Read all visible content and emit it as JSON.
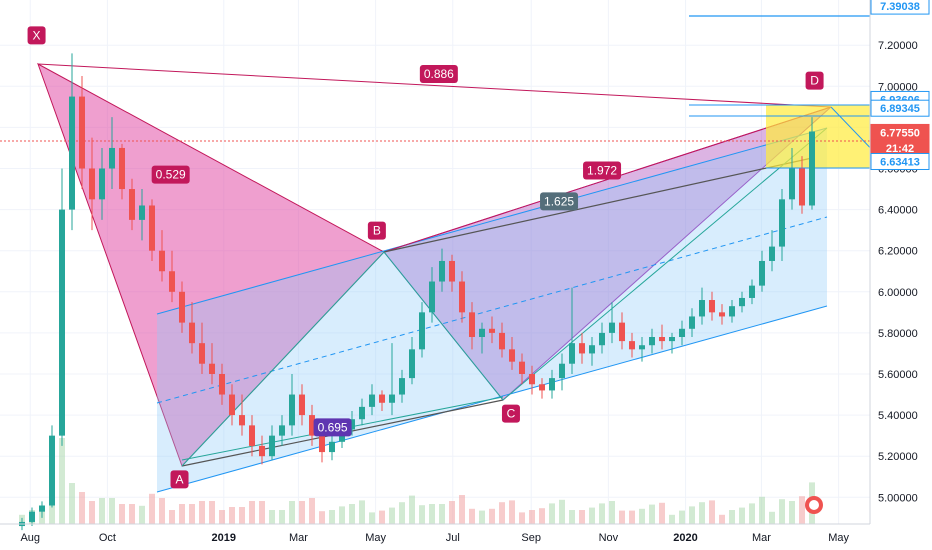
{
  "chart_data": {
    "type": "candlestick",
    "y_axis": {
      "ticks": [
        5.0,
        5.2,
        5.4,
        5.6,
        5.8,
        6.0,
        6.2,
        6.4,
        6.6,
        6.8,
        7.0,
        7.2
      ],
      "tick_labels": [
        "5.00000",
        "5.20000",
        "5.40000",
        "5.60000",
        "5.80000",
        "6.00000",
        "6.20000",
        "6.40000",
        "6.60000",
        "6.80000",
        "7.00000",
        "7.20000"
      ],
      "ylim": [
        4.87,
        7.42
      ]
    },
    "x_axis": {
      "tick_labels": [
        "Aug",
        "Oct",
        "2019",
        "Mar",
        "May",
        "Jul",
        "Sep",
        "Nov",
        "2020",
        "Mar",
        "May"
      ],
      "tick_dates": [
        "2018-08-01",
        "2018-10-01",
        "2019-01-01",
        "2019-03-01",
        "2019-05-01",
        "2019-07-01",
        "2019-09-01",
        "2019-11-01",
        "2020-01-01",
        "2020-03-01",
        "2020-05-01"
      ]
    },
    "price_labels": [
      {
        "value": 7.39038,
        "text": "7.39038",
        "style": "outline"
      },
      {
        "value": 6.93606,
        "text": "6.93606",
        "style": "outline"
      },
      {
        "value": 6.89345,
        "text": "6.89345",
        "style": "outline"
      },
      {
        "value": 6.7755,
        "text": "6.77550",
        "style": "current"
      },
      {
        "value": 6.7,
        "text": "21:42",
        "style": "current"
      },
      {
        "value": 6.63413,
        "text": "6.63413",
        "style": "outline"
      }
    ],
    "harmonic_points": [
      {
        "label": "X",
        "date": "2018-08-06",
        "price": 7.16
      },
      {
        "label": "A",
        "date": "2018-11-27",
        "price": 5.16
      },
      {
        "label": "B",
        "date": "2019-05-02",
        "price": 6.21
      },
      {
        "label": "C",
        "date": "2019-08-16",
        "price": 5.48
      },
      {
        "label": "D",
        "date": "2020-04-12",
        "price": 6.94
      }
    ],
    "ratios": [
      {
        "text": "0.886",
        "date": "2019-06-20",
        "price": 7.06
      },
      {
        "text": "0.529",
        "date": "2018-11-20",
        "price": 6.57
      },
      {
        "text": "1.972",
        "date": "2019-10-27",
        "price": 6.59
      },
      {
        "text": "1.625",
        "date": "2019-09-23",
        "price": 6.44
      },
      {
        "text": "0.695",
        "date": "2019-03-28",
        "price": 5.34
      }
    ],
    "candles": [
      [
        4.86,
        4.9,
        4.84,
        4.88
      ],
      [
        4.88,
        4.95,
        4.86,
        4.93
      ],
      [
        4.93,
        4.98,
        4.9,
        4.96
      ],
      [
        4.96,
        5.35,
        4.95,
        5.3
      ],
      [
        5.3,
        6.6,
        5.25,
        6.4
      ],
      [
        6.4,
        7.16,
        6.3,
        6.95
      ],
      [
        6.95,
        7.05,
        6.5,
        6.6
      ],
      [
        6.6,
        6.75,
        6.3,
        6.45
      ],
      [
        6.45,
        6.7,
        6.35,
        6.6
      ],
      [
        6.6,
        6.85,
        6.5,
        6.7
      ],
      [
        6.7,
        6.72,
        6.45,
        6.5
      ],
      [
        6.5,
        6.55,
        6.3,
        6.35
      ],
      [
        6.35,
        6.5,
        6.25,
        6.42
      ],
      [
        6.42,
        6.45,
        6.15,
        6.2
      ],
      [
        6.2,
        6.3,
        6.05,
        6.1
      ],
      [
        6.1,
        6.2,
        5.95,
        6.0
      ],
      [
        6.0,
        6.05,
        5.8,
        5.85
      ],
      [
        5.85,
        5.95,
        5.7,
        5.75
      ],
      [
        5.75,
        5.85,
        5.6,
        5.65
      ],
      [
        5.65,
        5.75,
        5.55,
        5.6
      ],
      [
        5.6,
        5.65,
        5.45,
        5.5
      ],
      [
        5.5,
        5.55,
        5.35,
        5.4
      ],
      [
        5.4,
        5.5,
        5.3,
        5.35
      ],
      [
        5.35,
        5.4,
        5.2,
        5.25
      ],
      [
        5.25,
        5.3,
        5.16,
        5.2
      ],
      [
        5.2,
        5.35,
        5.18,
        5.3
      ],
      [
        5.3,
        5.4,
        5.25,
        5.35
      ],
      [
        5.35,
        5.6,
        5.3,
        5.5
      ],
      [
        5.5,
        5.55,
        5.35,
        5.4
      ],
      [
        5.4,
        5.45,
        5.25,
        5.3
      ],
      [
        5.3,
        5.32,
        5.17,
        5.22
      ],
      [
        5.22,
        5.3,
        5.18,
        5.27
      ],
      [
        5.27,
        5.36,
        5.24,
        5.33
      ],
      [
        5.33,
        5.42,
        5.3,
        5.38
      ],
      [
        5.38,
        5.48,
        5.35,
        5.44
      ],
      [
        5.44,
        5.55,
        5.4,
        5.5
      ],
      [
        5.5,
        5.52,
        5.42,
        5.46
      ],
      [
        5.46,
        5.75,
        5.4,
        5.5
      ],
      [
        5.5,
        5.62,
        5.46,
        5.58
      ],
      [
        5.58,
        5.78,
        5.55,
        5.72
      ],
      [
        5.72,
        5.95,
        5.68,
        5.9
      ],
      [
        5.9,
        6.12,
        5.85,
        6.05
      ],
      [
        6.05,
        6.21,
        6.0,
        6.15
      ],
      [
        6.15,
        6.18,
        6.0,
        6.05
      ],
      [
        6.05,
        6.1,
        5.85,
        5.9
      ],
      [
        5.9,
        5.95,
        5.72,
        5.78
      ],
      [
        5.78,
        5.85,
        5.7,
        5.82
      ],
      [
        5.82,
        5.88,
        5.75,
        5.8
      ],
      [
        5.8,
        5.85,
        5.68,
        5.72
      ],
      [
        5.72,
        5.78,
        5.62,
        5.66
      ],
      [
        5.66,
        5.7,
        5.55,
        5.6
      ],
      [
        5.6,
        5.64,
        5.5,
        5.55
      ],
      [
        5.55,
        5.58,
        5.48,
        5.52
      ],
      [
        5.52,
        5.62,
        5.48,
        5.58
      ],
      [
        5.58,
        5.7,
        5.52,
        5.65
      ],
      [
        5.65,
        6.02,
        5.6,
        5.75
      ],
      [
        5.75,
        5.8,
        5.65,
        5.7
      ],
      [
        5.7,
        5.78,
        5.64,
        5.74
      ],
      [
        5.74,
        5.85,
        5.7,
        5.8
      ],
      [
        5.8,
        5.95,
        5.75,
        5.85
      ],
      [
        5.85,
        5.9,
        5.72,
        5.76
      ],
      [
        5.76,
        5.8,
        5.68,
        5.72
      ],
      [
        5.72,
        5.78,
        5.66,
        5.74
      ],
      [
        5.74,
        5.82,
        5.7,
        5.78
      ],
      [
        5.78,
        5.84,
        5.72,
        5.76
      ],
      [
        5.76,
        5.8,
        5.7,
        5.78
      ],
      [
        5.78,
        5.86,
        5.74,
        5.82
      ],
      [
        5.82,
        5.92,
        5.78,
        5.88
      ],
      [
        5.88,
        6.02,
        5.84,
        5.96
      ],
      [
        5.96,
        6.0,
        5.86,
        5.9
      ],
      [
        5.9,
        5.94,
        5.84,
        5.88
      ],
      [
        5.88,
        5.96,
        5.85,
        5.93
      ],
      [
        5.93,
        6.0,
        5.9,
        5.97
      ],
      [
        5.97,
        6.06,
        5.94,
        6.03
      ],
      [
        6.03,
        6.2,
        6.0,
        6.15
      ],
      [
        6.15,
        6.3,
        6.1,
        6.22
      ],
      [
        6.22,
        6.5,
        6.15,
        6.45
      ],
      [
        6.45,
        6.7,
        6.4,
        6.6
      ],
      [
        6.6,
        6.66,
        6.38,
        6.42
      ],
      [
        6.42,
        6.85,
        6.4,
        6.78
      ]
    ]
  }
}
